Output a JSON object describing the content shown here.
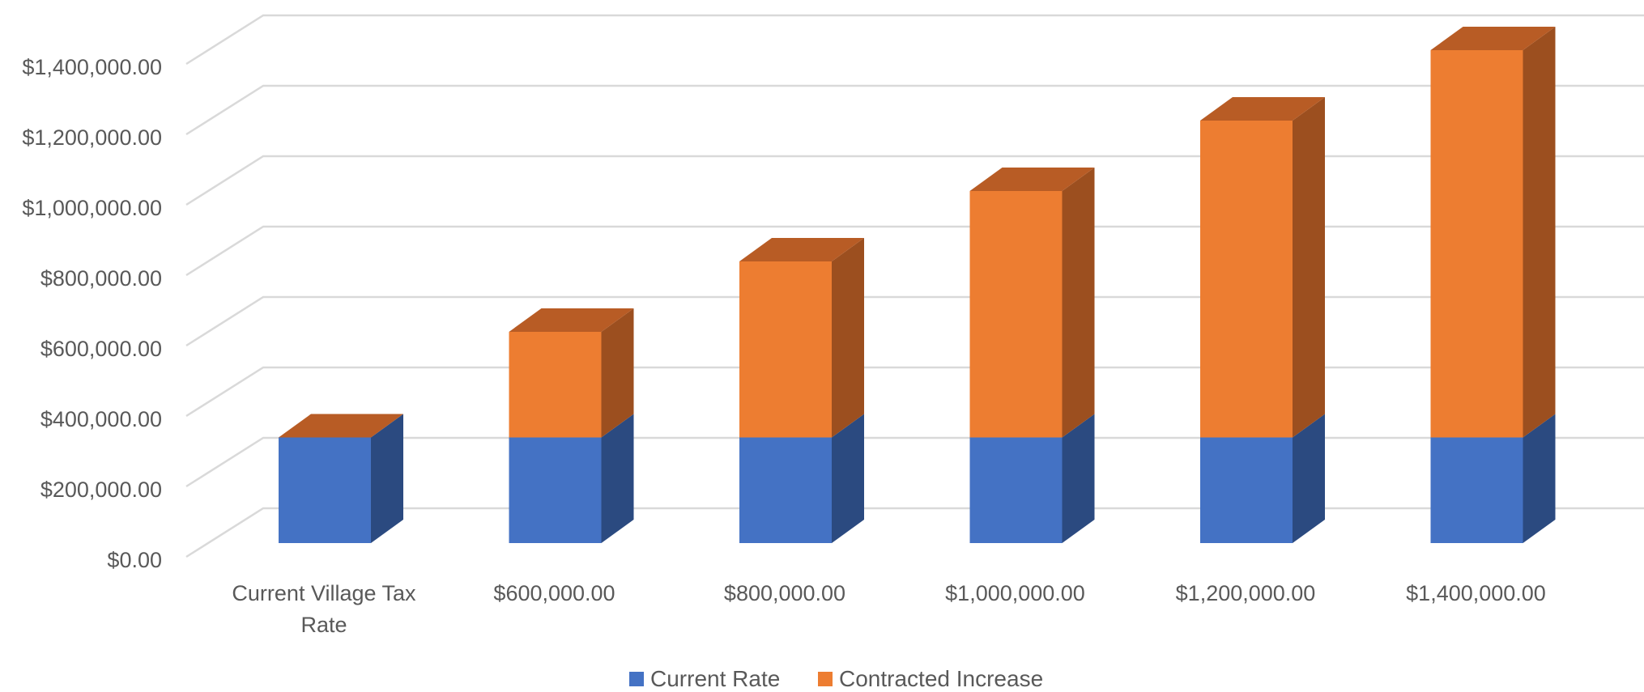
{
  "chart_data": {
    "type": "bar",
    "stacked": true,
    "style": "3d-stacked-column",
    "categories": [
      "Current Village Tax Rate",
      "$600,000.00",
      "$800,000.00",
      "$1,000,000.00",
      "$1,200,000.00",
      "$1,400,000.00"
    ],
    "category_lines": [
      [
        "Current Village Tax",
        "Rate"
      ],
      [
        "$600,000.00"
      ],
      [
        "$800,000.00"
      ],
      [
        "$1,000,000.00"
      ],
      [
        "$1,200,000.00"
      ],
      [
        "$1,400,000.00"
      ]
    ],
    "series": [
      {
        "name": "Current Rate",
        "values": [
          300000,
          300000,
          300000,
          300000,
          300000,
          300000
        ]
      },
      {
        "name": "Contracted Increase",
        "values": [
          0,
          300000,
          500000,
          700000,
          900000,
          1100000
        ]
      }
    ],
    "yticks": [
      "$0.00",
      "$200,000.00",
      "$400,000.00",
      "$600,000.00",
      "$800,000.00",
      "$1,000,000.00",
      "$1,200,000.00",
      "$1,400,000.00"
    ],
    "ylim": [
      0,
      1400000
    ],
    "title": "",
    "xlabel": "",
    "ylabel": "",
    "grid": true,
    "legend": "bottom",
    "colors": {
      "current_front": "#4472C4",
      "current_side": "#2B4A80",
      "increase_front": "#ED7D31",
      "increase_side": "#9C4F1F",
      "increase_top": "#B85C25",
      "grid": "#D9D9D9",
      "text": "#595959"
    }
  }
}
